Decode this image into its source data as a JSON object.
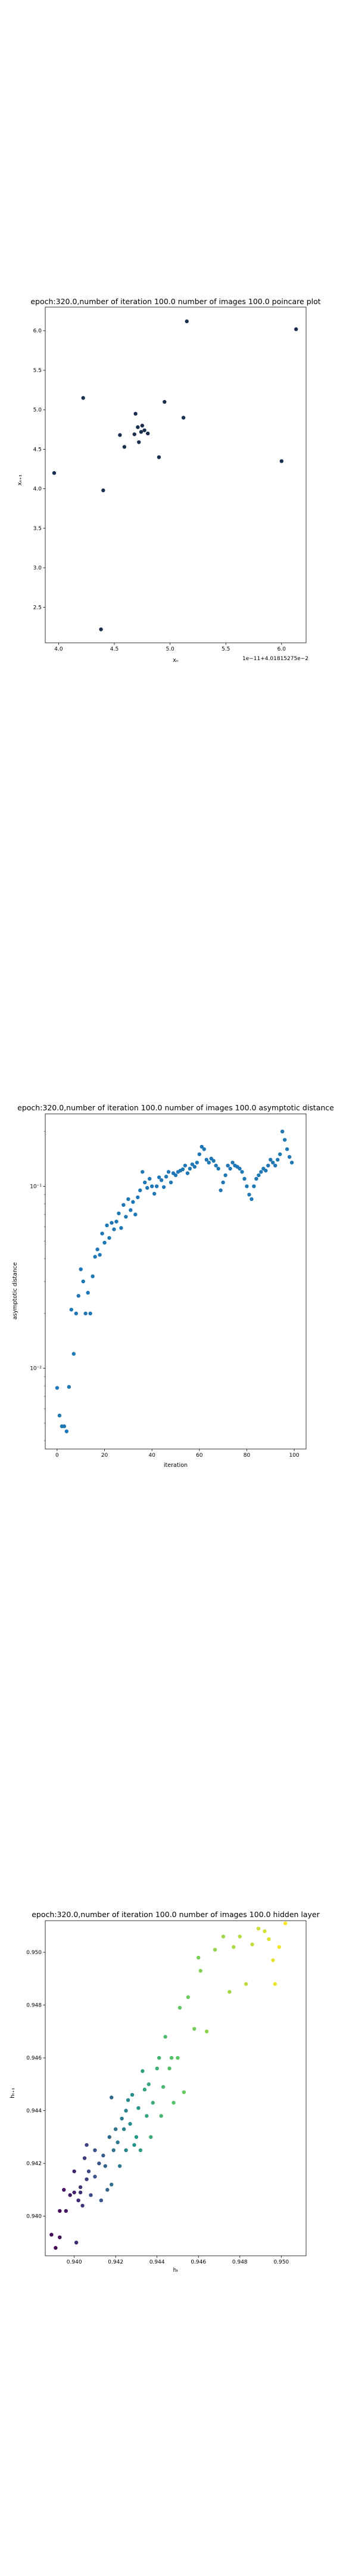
{
  "chart_data": [
    {
      "type": "scatter",
      "title": "epoch:320.0,number of iteration 100.0 number of images 100.0 poincare plot",
      "xlabel": "xₙ",
      "ylabel": "xₙ₊₁",
      "offset_text": "1e−11+4.01815275e−2",
      "x_ticks": [
        "4.0",
        "4.5",
        "5.0",
        "5.5",
        "6.0"
      ],
      "y_ticks": [
        "2.5",
        "3.0",
        "3.5",
        "4.0",
        "4.5",
        "5.0",
        "5.5",
        "6.0"
      ],
      "xlim": [
        3.88,
        6.22
      ],
      "ylim": [
        2.05,
        6.3
      ],
      "marker_color": "#1a2f4f",
      "points": [
        [
          3.96,
          4.2
        ],
        [
          4.22,
          5.15
        ],
        [
          4.38,
          2.22
        ],
        [
          4.4,
          3.98
        ],
        [
          4.55,
          4.68
        ],
        [
          4.59,
          4.53
        ],
        [
          4.68,
          4.69
        ],
        [
          4.69,
          4.95
        ],
        [
          4.71,
          4.78
        ],
        [
          4.72,
          4.59
        ],
        [
          4.74,
          4.72
        ],
        [
          4.75,
          4.8
        ],
        [
          4.77,
          4.74
        ],
        [
          4.8,
          4.7
        ],
        [
          4.9,
          4.4
        ],
        [
          4.95,
          5.1
        ],
        [
          5.12,
          4.9
        ],
        [
          5.15,
          6.12
        ],
        [
          6.0,
          4.35
        ],
        [
          6.13,
          6.02
        ]
      ]
    },
    {
      "type": "scatter",
      "title": "epoch:320.0,number of iteration 100.0  number of images 100.0 asymptotic distance",
      "xlabel": "iteration",
      "ylabel": "asymptotic distance",
      "log_y": true,
      "x_ticks": [
        "0",
        "20",
        "40",
        "60",
        "80",
        "100"
      ],
      "y_ticks": [
        "10⁻²",
        "10⁻¹"
      ],
      "xlim": [
        -5,
        105
      ],
      "ylim": [
        0.0036,
        0.25
      ],
      "marker_color": "#1f77b4",
      "y_values": [
        0.0078,
        0.0055,
        0.0048,
        0.0048,
        0.0045,
        0.0079,
        0.021,
        0.012,
        0.02,
        0.025,
        0.035,
        0.03,
        0.02,
        0.026,
        0.02,
        0.032,
        0.041,
        0.045,
        0.042,
        0.055,
        0.049,
        0.061,
        0.052,
        0.063,
        0.058,
        0.064,
        0.071,
        0.059,
        0.079,
        0.068,
        0.085,
        0.074,
        0.082,
        0.07,
        0.087,
        0.095,
        0.12,
        0.105,
        0.098,
        0.11,
        0.1,
        0.091,
        0.1,
        0.112,
        0.108,
        0.099,
        0.113,
        0.12,
        0.105,
        0.118,
        0.115,
        0.12,
        0.122,
        0.124,
        0.13,
        0.118,
        0.125,
        0.132,
        0.128,
        0.135,
        0.15,
        0.165,
        0.16,
        0.14,
        0.135,
        0.142,
        0.138,
        0.13,
        0.125,
        0.095,
        0.105,
        0.115,
        0.13,
        0.125,
        0.135,
        0.13,
        0.128,
        0.125,
        0.12,
        0.11,
        0.1,
        0.09,
        0.085,
        0.1,
        0.11,
        0.115,
        0.12,
        0.125,
        0.122,
        0.13,
        0.14,
        0.135,
        0.13,
        0.14,
        0.15,
        0.2,
        0.18,
        0.16,
        0.145,
        0.135
      ]
    },
    {
      "type": "scatter",
      "title": "epoch:320.0,number of iteration 100.0  number of images 100.0 hidden layer",
      "xlabel": "hₜ",
      "ylabel": "hₜ₊₁",
      "x_ticks": [
        "0.940",
        "0.942",
        "0.944",
        "0.946",
        "0.948",
        "0.950"
      ],
      "y_ticks": [
        "0.940",
        "0.942",
        "0.944",
        "0.946",
        "0.948",
        "0.950"
      ],
      "xlim": [
        0.9386,
        0.9512
      ],
      "ylim": [
        0.9385,
        0.9512
      ],
      "colormap": [
        "#440154",
        "#3b528b",
        "#21918c",
        "#5ec962",
        "#fde725"
      ],
      "points": [
        [
          0.9389,
          0.9393
        ],
        [
          0.9391,
          0.9388
        ],
        [
          0.9393,
          0.9392
        ],
        [
          0.9393,
          0.9402
        ],
        [
          0.9395,
          0.941
        ],
        [
          0.9396,
          0.9402
        ],
        [
          0.9398,
          0.9408
        ],
        [
          0.94,
          0.9409
        ],
        [
          0.94,
          0.9417
        ],
        [
          0.9401,
          0.939
        ],
        [
          0.9402,
          0.9406
        ],
        [
          0.9403,
          0.9409
        ],
        [
          0.9403,
          0.9411
        ],
        [
          0.9404,
          0.9404
        ],
        [
          0.9405,
          0.9422
        ],
        [
          0.9406,
          0.9414
        ],
        [
          0.9406,
          0.9427
        ],
        [
          0.9407,
          0.9417
        ],
        [
          0.9408,
          0.9408
        ],
        [
          0.941,
          0.9425
        ],
        [
          0.941,
          0.9415
        ],
        [
          0.9412,
          0.942
        ],
        [
          0.9413,
          0.9406
        ],
        [
          0.9414,
          0.9423
        ],
        [
          0.9415,
          0.9419
        ],
        [
          0.9416,
          0.941
        ],
        [
          0.9417,
          0.943
        ],
        [
          0.9418,
          0.9445
        ],
        [
          0.9418,
          0.9412
        ],
        [
          0.9419,
          0.9425
        ],
        [
          0.942,
          0.9433
        ],
        [
          0.9421,
          0.9428
        ],
        [
          0.9422,
          0.9419
        ],
        [
          0.9423,
          0.9437
        ],
        [
          0.9424,
          0.9433
        ],
        [
          0.9425,
          0.944
        ],
        [
          0.9425,
          0.9425
        ],
        [
          0.9426,
          0.9444
        ],
        [
          0.9427,
          0.9435
        ],
        [
          0.9428,
          0.9446
        ],
        [
          0.9429,
          0.9427
        ],
        [
          0.943,
          0.943
        ],
        [
          0.9431,
          0.9441
        ],
        [
          0.9432,
          0.9425
        ],
        [
          0.9433,
          0.9455
        ],
        [
          0.9434,
          0.9448
        ],
        [
          0.9435,
          0.9438
        ],
        [
          0.9436,
          0.945
        ],
        [
          0.9437,
          0.943
        ],
        [
          0.9438,
          0.9443
        ],
        [
          0.944,
          0.9456
        ],
        [
          0.9441,
          0.946
        ],
        [
          0.9442,
          0.9438
        ],
        [
          0.9443,
          0.9449
        ],
        [
          0.9444,
          0.9468
        ],
        [
          0.9446,
          0.9456
        ],
        [
          0.9447,
          0.946
        ],
        [
          0.9448,
          0.9443
        ],
        [
          0.945,
          0.946
        ],
        [
          0.9451,
          0.9479
        ],
        [
          0.9453,
          0.9447
        ],
        [
          0.9455,
          0.9483
        ],
        [
          0.9458,
          0.9471
        ],
        [
          0.946,
          0.9498
        ],
        [
          0.9461,
          0.9493
        ],
        [
          0.9464,
          0.947
        ],
        [
          0.9468,
          0.9501
        ],
        [
          0.9472,
          0.9506
        ],
        [
          0.9475,
          0.9485
        ],
        [
          0.9477,
          0.9502
        ],
        [
          0.948,
          0.9506
        ],
        [
          0.9483,
          0.9488
        ],
        [
          0.9486,
          0.9503
        ],
        [
          0.9489,
          0.9509
        ],
        [
          0.9492,
          0.9508
        ],
        [
          0.9494,
          0.9505
        ],
        [
          0.9496,
          0.9497
        ],
        [
          0.9497,
          0.9488
        ],
        [
          0.9499,
          0.9502
        ],
        [
          0.9502,
          0.9511
        ]
      ]
    }
  ]
}
